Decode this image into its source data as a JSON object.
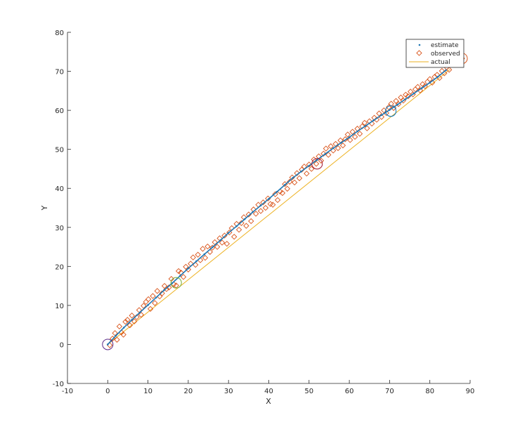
{
  "chart_data": {
    "type": "scatter",
    "title": "",
    "xlabel": "X",
    "ylabel": "Y",
    "xlim": [
      -10,
      90
    ],
    "ylim": [
      -10,
      80
    ],
    "xticks": [
      "-10",
      "0",
      "10",
      "20",
      "30",
      "40",
      "50",
      "60",
      "70",
      "80",
      "90"
    ],
    "yticks": [
      "-10",
      "0",
      "10",
      "20",
      "30",
      "40",
      "50",
      "60",
      "70",
      "80"
    ],
    "grid": false,
    "legend_position": "top-right",
    "series": [
      {
        "name": "estimate",
        "kind": "points",
        "color": "#1f77b4",
        "x": [
          0,
          2,
          4,
          6,
          8,
          10,
          12,
          14,
          16,
          18,
          20,
          22,
          24,
          26,
          28,
          30,
          32,
          34,
          36,
          38,
          40,
          42,
          44,
          46,
          48,
          50,
          52,
          54,
          56,
          58,
          60,
          62,
          64,
          66,
          68,
          70,
          72,
          74,
          76,
          78,
          80,
          82,
          84
        ],
        "y": [
          0,
          2.2,
          4.3,
          6.3,
          8.2,
          10.1,
          12,
          13.9,
          15.7,
          17.6,
          19.5,
          21.3,
          23.1,
          24.9,
          26.7,
          28.6,
          30.3,
          32.1,
          33.9,
          35.6,
          37.3,
          39.1,
          40.9,
          42.7,
          44.3,
          45.8,
          47.3,
          48.8,
          50.3,
          51.7,
          53.1,
          54.6,
          56,
          57.4,
          58.8,
          60.1,
          61.5,
          62.9,
          64.3,
          65.7,
          67.1,
          68.6,
          70.3
        ]
      },
      {
        "name": "observed",
        "kind": "markers",
        "color": "#d95319",
        "x": [
          0.5,
          1.2,
          1.8,
          2.3,
          2.9,
          3.4,
          3.9,
          4.4,
          4.9,
          5.5,
          6.0,
          6.6,
          7.2,
          7.8,
          8.3,
          8.9,
          9.5,
          10.1,
          10.6,
          11.2,
          11.7,
          12.3,
          12.9,
          13.5,
          14.1,
          14.6,
          15.2,
          15.8,
          16.4,
          17.0,
          17.6,
          18.2,
          18.8,
          19.4,
          20.0,
          20.6,
          21.2,
          21.8,
          22.4,
          23.0,
          23.6,
          24.2,
          24.8,
          25.4,
          26.0,
          26.6,
          27.2,
          27.8,
          28.4,
          29.0,
          29.6,
          30.2,
          30.8,
          31.4,
          32.0,
          32.6,
          33.2,
          33.8,
          34.4,
          35.0,
          35.6,
          36.2,
          36.8,
          37.4,
          38.0,
          38.6,
          39.2,
          39.8,
          40.4,
          41.0,
          41.6,
          42.2,
          42.8,
          43.4,
          44.0,
          44.6,
          45.2,
          45.8,
          46.4,
          47.0,
          47.6,
          48.2,
          48.8,
          49.4,
          50.0,
          50.6,
          51.2,
          51.8,
          52.4,
          53.0,
          53.6,
          54.2,
          54.8,
          55.4,
          56.0,
          56.6,
          57.2,
          57.8,
          58.4,
          59.0,
          59.6,
          60.2,
          60.8,
          61.4,
          62.0,
          62.6,
          63.2,
          63.8,
          64.4,
          65.0,
          65.6,
          66.2,
          66.8,
          67.4,
          68.0,
          68.6,
          69.2,
          69.8,
          70.4,
          71.0,
          71.6,
          72.2,
          72.8,
          73.4,
          74.0,
          74.6,
          75.2,
          75.8,
          76.4,
          77.0,
          77.6,
          78.2,
          78.8,
          79.4,
          80.0,
          80.6,
          81.2,
          81.8,
          82.4,
          83.0,
          83.6,
          84.2,
          84.8,
          85.4,
          86.2,
          87.0,
          88.0
        ],
        "y": [
          -0.2,
          1.5,
          2.9,
          1.2,
          4.6,
          3.1,
          2.5,
          5.8,
          6.3,
          4.9,
          7.4,
          5.9,
          7.0,
          8.8,
          7.6,
          9.9,
          10.9,
          11.6,
          9.1,
          12.4,
          10.6,
          13.7,
          12.3,
          13.1,
          15.0,
          14.2,
          14.6,
          16.8,
          15.4,
          15.1,
          18.8,
          18.4,
          17.3,
          19.9,
          19.2,
          20.7,
          22.3,
          20.4,
          23.0,
          21.6,
          24.5,
          22.2,
          25.1,
          23.7,
          24.8,
          26.2,
          25.0,
          27.2,
          26.1,
          27.9,
          25.8,
          28.7,
          29.8,
          27.6,
          30.9,
          29.4,
          31.1,
          32.6,
          30.4,
          33.3,
          31.6,
          34.6,
          33.5,
          35.8,
          34.2,
          36.4,
          35.0,
          37.4,
          36.0,
          35.8,
          38.5,
          37.0,
          39.2,
          38.8,
          41.1,
          39.9,
          41.7,
          42.8,
          41.5,
          43.9,
          42.6,
          44.8,
          45.6,
          43.8,
          46.1,
          45.0,
          47.4,
          46.3,
          48.2,
          47.1,
          48.9,
          50.2,
          48.6,
          50.8,
          49.7,
          51.4,
          50.3,
          52.3,
          51.0,
          52.6,
          53.8,
          52.4,
          54.5,
          53.2,
          55.3,
          54.0,
          55.9,
          56.8,
          55.4,
          57.2,
          56.6,
          58.1,
          57.6,
          59.2,
          58.3,
          60.0,
          59.3,
          60.8,
          61.7,
          60.6,
          62.4,
          61.6,
          63.3,
          62.5,
          64.0,
          63.6,
          64.8,
          64.1,
          65.4,
          66.0,
          65.1,
          66.7,
          66.2,
          67.3,
          68.0,
          67.1,
          68.6,
          69.1,
          68.3,
          70.1,
          69.5,
          71.0,
          70.4,
          71.8,
          72.4,
          73.0,
          73.3
        ]
      },
      {
        "name": "actual",
        "kind": "line",
        "color": "#edb120",
        "x": [
          0,
          85
        ],
        "y": [
          0,
          70.5
        ]
      }
    ],
    "circle_markers": [
      {
        "x": 0,
        "y": 0,
        "color": "#5b2a86"
      },
      {
        "x": 17,
        "y": 15.8,
        "color": "#77ac30"
      },
      {
        "x": 52,
        "y": 46.3,
        "color": "#a2142f"
      },
      {
        "x": 70.3,
        "y": 59.8,
        "color": "#0072bd"
      },
      {
        "x": 88,
        "y": 73.3,
        "color": "#d95319"
      }
    ]
  }
}
